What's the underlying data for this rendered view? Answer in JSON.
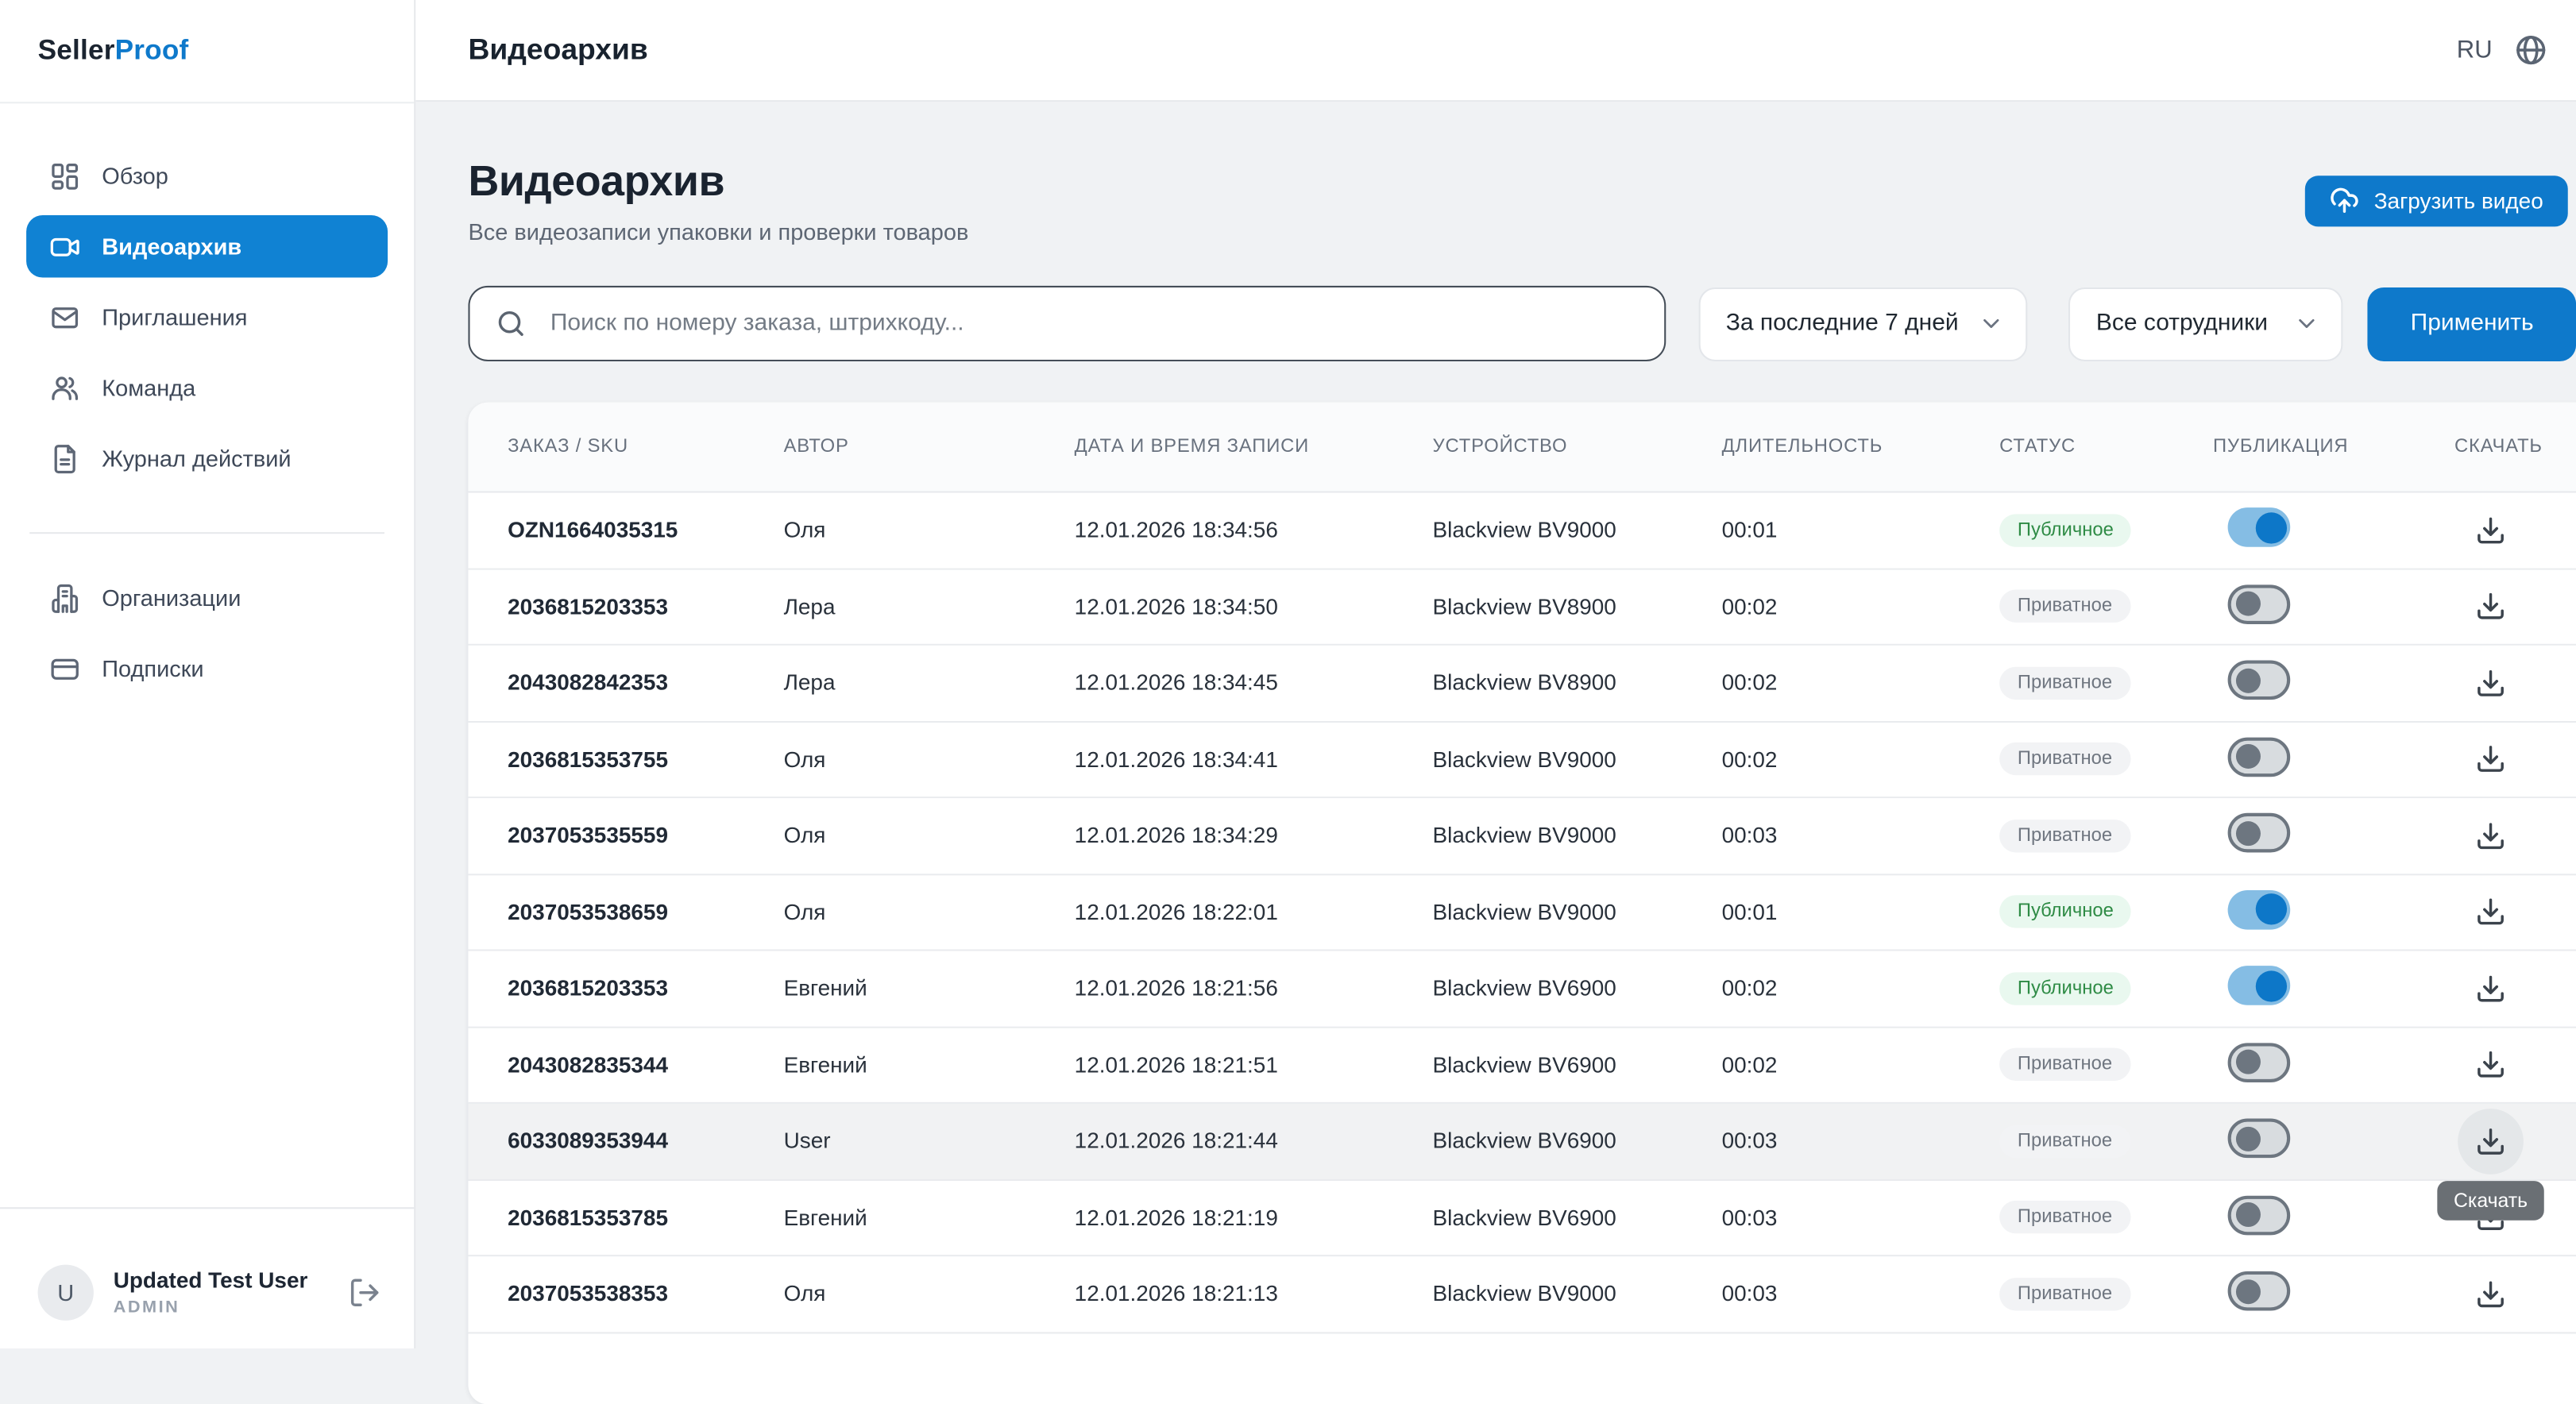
{
  "brand": {
    "seller": "Seller",
    "proof": "Proof"
  },
  "topbar": {
    "title": "Видеоархив",
    "lang": "RU"
  },
  "sidebar": {
    "items": [
      {
        "key": "overview",
        "icon": "dashboard",
        "label": "Обзор",
        "active": false
      },
      {
        "key": "video-archive",
        "icon": "video",
        "label": "Видеоархив",
        "active": true
      },
      {
        "key": "invitations",
        "icon": "mail",
        "label": "Приглашения",
        "active": false
      },
      {
        "key": "team",
        "icon": "users",
        "label": "Команда",
        "active": false
      },
      {
        "key": "activity-log",
        "icon": "file-text",
        "label": "Журнал действий",
        "active": false
      }
    ],
    "secondary_items": [
      {
        "key": "organizations",
        "icon": "building",
        "label": "Организации",
        "active": false
      },
      {
        "key": "subscriptions",
        "icon": "credit-card",
        "label": "Подписки",
        "active": false
      }
    ],
    "user": {
      "initial": "U",
      "name": "Updated Test User",
      "role": "ADMIN"
    }
  },
  "page": {
    "title": "Видеоархив",
    "subtitle": "Все видеозаписи упаковки и проверки товаров",
    "upload_button": "Загрузить видео"
  },
  "filters": {
    "search_placeholder": "Поиск по номеру заказа, штрихкоду...",
    "period": "За последние 7 дней",
    "employees": "Все сотрудники",
    "apply": "Применить"
  },
  "table": {
    "headers": [
      "ЗАКАЗ / SKU",
      "АВТОР",
      "ДАТА И ВРЕМЯ ЗАПИСИ",
      "УСТРОЙСТВО",
      "ДЛИТЕЛЬНОСТЬ",
      "СТАТУС",
      "ПУБЛИКАЦИЯ",
      "СКАЧАТЬ"
    ],
    "status_labels": {
      "public": "Публичное",
      "private": "Приватное"
    },
    "download_tooltip": "Скачать",
    "rows": [
      {
        "order": "OZN1664035315",
        "author": "Оля",
        "datetime": "12.01.2026 18:34:56",
        "device": "Blackview BV9000",
        "duration": "00:01",
        "status": "public",
        "published": true,
        "hover": false
      },
      {
        "order": "2036815203353",
        "author": "Лера",
        "datetime": "12.01.2026 18:34:50",
        "device": "Blackview BV8900",
        "duration": "00:02",
        "status": "private",
        "published": false,
        "hover": false
      },
      {
        "order": "2043082842353",
        "author": "Лера",
        "datetime": "12.01.2026 18:34:45",
        "device": "Blackview BV8900",
        "duration": "00:02",
        "status": "private",
        "published": false,
        "hover": false
      },
      {
        "order": "2036815353755",
        "author": "Оля",
        "datetime": "12.01.2026 18:34:41",
        "device": "Blackview BV9000",
        "duration": "00:02",
        "status": "private",
        "published": false,
        "hover": false
      },
      {
        "order": "2037053535559",
        "author": "Оля",
        "datetime": "12.01.2026 18:34:29",
        "device": "Blackview BV9000",
        "duration": "00:03",
        "status": "private",
        "published": false,
        "hover": false
      },
      {
        "order": "2037053538659",
        "author": "Оля",
        "datetime": "12.01.2026 18:22:01",
        "device": "Blackview BV9000",
        "duration": "00:01",
        "status": "public",
        "published": true,
        "hover": false
      },
      {
        "order": "2036815203353",
        "author": "Евгений",
        "datetime": "12.01.2026 18:21:56",
        "device": "Blackview BV6900",
        "duration": "00:02",
        "status": "public",
        "published": true,
        "hover": false
      },
      {
        "order": "2043082835344",
        "author": "Евгений",
        "datetime": "12.01.2026 18:21:51",
        "device": "Blackview BV6900",
        "duration": "00:02",
        "status": "private",
        "published": false,
        "hover": false
      },
      {
        "order": "6033089353944",
        "author": "User",
        "datetime": "12.01.2026 18:21:44",
        "device": "Blackview BV6900",
        "duration": "00:03",
        "status": "private",
        "published": false,
        "hover": true
      },
      {
        "order": "2036815353785",
        "author": "Евгений",
        "datetime": "12.01.2026 18:21:19",
        "device": "Blackview BV6900",
        "duration": "00:03",
        "status": "private",
        "published": false,
        "hover": false
      },
      {
        "order": "2037053538353",
        "author": "Оля",
        "datetime": "12.01.2026 18:21:13",
        "device": "Blackview BV9000",
        "duration": "00:03",
        "status": "private",
        "published": false,
        "hover": false
      }
    ]
  },
  "colors": {
    "primary": "#0e79cb",
    "sidebar_active": "#1082d3",
    "toggle_on_track": "#85bde4",
    "toggle_on_knob": "#0d77c8",
    "badge_public_bg": "#e9f8ef",
    "badge_public_text": "#2e8b45",
    "badge_private_bg": "#f2f3f5",
    "badge_private_text": "#6f7680",
    "tooltip_bg": "#6a6f74"
  }
}
